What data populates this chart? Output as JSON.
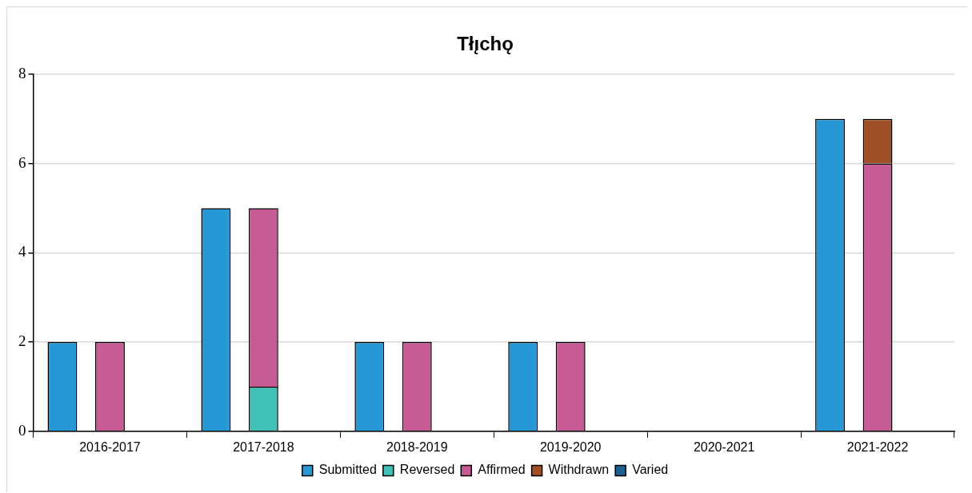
{
  "chart_data": {
    "type": "bar",
    "title": "Tłı̨chǫ",
    "categories": [
      "2016-2017",
      "2017-2018",
      "2018-2019",
      "2019-2020",
      "2020-2021",
      "2021-2022"
    ],
    "series": [
      {
        "name": "Submitted",
        "color": "#2798d6",
        "values": [
          2,
          5,
          2,
          2,
          0,
          7
        ]
      },
      {
        "name": "Reversed",
        "color": "#40c0b6",
        "base": [
          null,
          0,
          null,
          null,
          null,
          null
        ],
        "values": [
          0,
          1,
          0,
          0,
          0,
          0
        ]
      },
      {
        "name": "Affirmed",
        "color": "#c75b95",
        "base": [
          0,
          1,
          0,
          0,
          null,
          0
        ],
        "values": [
          2,
          4,
          2,
          2,
          0,
          6
        ]
      },
      {
        "name": "Withdrawn",
        "color": "#a05026",
        "base": [
          null,
          null,
          null,
          null,
          null,
          6
        ],
        "values": [
          0,
          0,
          0,
          0,
          0,
          1
        ]
      },
      {
        "name": "Varied",
        "color": "#1e5f8e",
        "values": [
          0,
          0,
          0,
          0,
          0,
          0
        ]
      }
    ],
    "ylim": [
      0,
      8
    ],
    "yticks": [
      0,
      2,
      4,
      6,
      8
    ],
    "grid": "y",
    "legend": "bottom"
  }
}
